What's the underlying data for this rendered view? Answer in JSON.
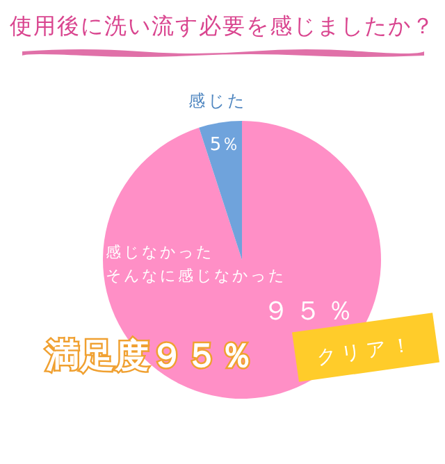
{
  "chart_data": {
    "type": "pie",
    "title": "使用後に洗い流す必要を感じましたか？",
    "categories": [
      "感じなかったそんなに感じなかった",
      "感じた"
    ],
    "values": [
      95,
      5
    ],
    "colors": [
      "#ff8fc6",
      "#6fa3dc"
    ],
    "value_labels": [
      "９５％",
      "5％"
    ],
    "annotations": [
      "満足度９５％",
      "クリア！"
    ]
  }
}
